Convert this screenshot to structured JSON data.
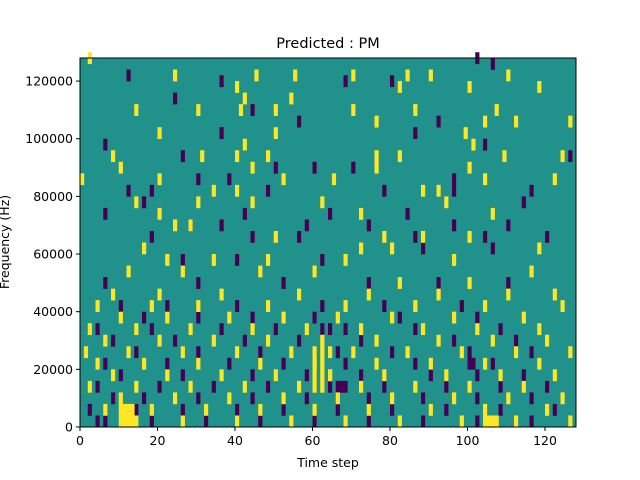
{
  "chart_data": {
    "type": "heatmap",
    "title": "Predicted : PM",
    "xlabel": "Time step",
    "ylabel": "Frequency (Hz)",
    "xlim": [
      0,
      128
    ],
    "ylim": [
      0,
      128000
    ],
    "x_ticks": [
      0,
      20,
      40,
      60,
      80,
      100,
      120
    ],
    "x_tick_labels": [
      "0",
      "20",
      "40",
      "60",
      "80",
      "100",
      "120"
    ],
    "y_ticks": [
      0,
      20000,
      40000,
      60000,
      80000,
      100000,
      120000
    ],
    "y_tick_labels": [
      "0",
      "20000",
      "40000",
      "60000",
      "80000",
      "100000",
      "120000"
    ],
    "grid": false,
    "colors": {
      "background": "#21918c",
      "low": "#440154",
      "high": "#fde725"
    },
    "cells_high": [
      [
        2,
        126000
      ],
      [
        24,
        120000
      ],
      [
        45,
        120000
      ],
      [
        55,
        120000
      ],
      [
        70,
        120000
      ],
      [
        84,
        120000
      ],
      [
        90,
        120000
      ],
      [
        110,
        120000
      ],
      [
        40,
        116000
      ],
      [
        42,
        112000
      ],
      [
        54,
        112000
      ],
      [
        82,
        116000
      ],
      [
        100,
        116000
      ],
      [
        118,
        116000
      ],
      [
        14,
        108000
      ],
      [
        30,
        108000
      ],
      [
        41,
        108000
      ],
      [
        50,
        108000
      ],
      [
        70,
        108000
      ],
      [
        86,
        108000
      ],
      [
        107,
        108000
      ],
      [
        76,
        104000
      ],
      [
        104,
        104000
      ],
      [
        112,
        104000
      ],
      [
        126,
        104000
      ],
      [
        20,
        100000
      ],
      [
        42,
        96000
      ],
      [
        50,
        100000
      ],
      [
        99,
        100000
      ],
      [
        101,
        96000
      ],
      [
        8,
        92000
      ],
      [
        31,
        92000
      ],
      [
        40,
        92000
      ],
      [
        48,
        92000
      ],
      [
        76,
        92000
      ],
      [
        82,
        92000
      ],
      [
        109,
        92000
      ],
      [
        124,
        92000
      ],
      [
        10,
        88000
      ],
      [
        44,
        88000
      ],
      [
        76,
        88000
      ],
      [
        100,
        88000
      ],
      [
        104,
        84000
      ],
      [
        122,
        84000
      ],
      [
        0,
        84000
      ],
      [
        20,
        84000
      ],
      [
        34,
        80000
      ],
      [
        40,
        80000
      ],
      [
        52,
        84000
      ],
      [
        65,
        84000
      ],
      [
        88,
        80000
      ],
      [
        92,
        80000
      ],
      [
        14,
        76000
      ],
      [
        20,
        72000
      ],
      [
        30,
        76000
      ],
      [
        44,
        76000
      ],
      [
        62,
        76000
      ],
      [
        72,
        72000
      ],
      [
        94,
        76000
      ],
      [
        106,
        72000
      ],
      [
        24,
        68000
      ],
      [
        28,
        68000
      ],
      [
        50,
        64000
      ],
      [
        78,
        64000
      ],
      [
        88,
        64000
      ],
      [
        100,
        64000
      ],
      [
        118,
        60000
      ],
      [
        16,
        60000
      ],
      [
        22,
        56000
      ],
      [
        34,
        56000
      ],
      [
        48,
        56000
      ],
      [
        68,
        56000
      ],
      [
        72,
        60000
      ],
      [
        80,
        60000
      ],
      [
        96,
        56000
      ],
      [
        12,
        52000
      ],
      [
        26,
        52000
      ],
      [
        46,
        52000
      ],
      [
        60,
        52000
      ],
      [
        82,
        48000
      ],
      [
        100,
        48000
      ],
      [
        116,
        52000
      ],
      [
        8,
        44000
      ],
      [
        20,
        44000
      ],
      [
        36,
        44000
      ],
      [
        56,
        44000
      ],
      [
        74,
        44000
      ],
      [
        92,
        44000
      ],
      [
        110,
        44000
      ],
      [
        122,
        44000
      ],
      [
        4,
        40000
      ],
      [
        18,
        40000
      ],
      [
        30,
        40000
      ],
      [
        48,
        40000
      ],
      [
        68,
        40000
      ],
      [
        86,
        40000
      ],
      [
        104,
        40000
      ],
      [
        124,
        40000
      ],
      [
        10,
        36000
      ],
      [
        22,
        36000
      ],
      [
        38,
        36000
      ],
      [
        52,
        36000
      ],
      [
        66,
        36000
      ],
      [
        80,
        36000
      ],
      [
        96,
        36000
      ],
      [
        114,
        36000
      ],
      [
        2,
        32000
      ],
      [
        14,
        32000
      ],
      [
        28,
        32000
      ],
      [
        44,
        32000
      ],
      [
        58,
        32000
      ],
      [
        72,
        32000
      ],
      [
        88,
        32000
      ],
      [
        102,
        32000
      ],
      [
        118,
        32000
      ],
      [
        6,
        28000
      ],
      [
        20,
        28000
      ],
      [
        34,
        28000
      ],
      [
        48,
        28000
      ],
      [
        62,
        28000
      ],
      [
        76,
        28000
      ],
      [
        92,
        28000
      ],
      [
        106,
        28000
      ],
      [
        120,
        28000
      ],
      [
        1,
        24000
      ],
      [
        12,
        24000
      ],
      [
        26,
        24000
      ],
      [
        40,
        24000
      ],
      [
        54,
        24000
      ],
      [
        70,
        24000
      ],
      [
        84,
        24000
      ],
      [
        98,
        24000
      ],
      [
        112,
        24000
      ],
      [
        126,
        24000
      ],
      [
        4,
        20000
      ],
      [
        16,
        20000
      ],
      [
        30,
        20000
      ],
      [
        46,
        20000
      ],
      [
        60,
        20000
      ],
      [
        76,
        20000
      ],
      [
        90,
        20000
      ],
      [
        104,
        20000
      ],
      [
        118,
        20000
      ],
      [
        8,
        16000
      ],
      [
        22,
        16000
      ],
      [
        36,
        16000
      ],
      [
        50,
        16000
      ],
      [
        64,
        16000
      ],
      [
        78,
        16000
      ],
      [
        94,
        16000
      ],
      [
        108,
        16000
      ],
      [
        122,
        16000
      ],
      [
        2,
        12000
      ],
      [
        14,
        12000
      ],
      [
        28,
        12000
      ],
      [
        42,
        12000
      ],
      [
        56,
        12000
      ],
      [
        72,
        12000
      ],
      [
        86,
        12000
      ],
      [
        100,
        12000
      ],
      [
        114,
        12000
      ],
      [
        10,
        8000
      ],
      [
        24,
        8000
      ],
      [
        38,
        8000
      ],
      [
        52,
        8000
      ],
      [
        66,
        8000
      ],
      [
        80,
        8000
      ],
      [
        96,
        8000
      ],
      [
        110,
        8000
      ],
      [
        124,
        8000
      ],
      [
        6,
        4000
      ],
      [
        18,
        4000
      ],
      [
        32,
        4000
      ],
      [
        46,
        4000
      ],
      [
        60,
        4000
      ],
      [
        74,
        4000
      ],
      [
        90,
        4000
      ],
      [
        104,
        4000
      ],
      [
        120,
        4000
      ],
      [
        12,
        0
      ],
      [
        26,
        0
      ],
      [
        40,
        0
      ],
      [
        54,
        0
      ],
      [
        68,
        0
      ],
      [
        82,
        0
      ],
      [
        98,
        0
      ],
      [
        112,
        0
      ],
      [
        126,
        0
      ],
      [
        60,
        24000
      ],
      [
        62,
        24000
      ],
      [
        64,
        24000
      ],
      [
        60,
        20000
      ],
      [
        62,
        20000
      ],
      [
        60,
        16000
      ],
      [
        62,
        16000
      ],
      [
        64,
        16000
      ],
      [
        60,
        12000
      ],
      [
        62,
        12000
      ],
      [
        10,
        0
      ],
      [
        11,
        0
      ],
      [
        12,
        0
      ],
      [
        13,
        0
      ],
      [
        14,
        0
      ],
      [
        10,
        4000
      ],
      [
        11,
        4000
      ],
      [
        12,
        4000
      ],
      [
        13,
        4000
      ],
      [
        104,
        0
      ],
      [
        105,
        0
      ],
      [
        106,
        0
      ],
      [
        107,
        0
      ]
    ],
    "cells_low": [
      [
        102,
        126000
      ],
      [
        12,
        120000
      ],
      [
        36,
        118000
      ],
      [
        68,
        118000
      ],
      [
        80,
        118000
      ],
      [
        106,
        124000
      ],
      [
        24,
        112000
      ],
      [
        44,
        108000
      ],
      [
        92,
        104000
      ],
      [
        56,
        104000
      ],
      [
        6,
        96000
      ],
      [
        36,
        100000
      ],
      [
        86,
        100000
      ],
      [
        104,
        96000
      ],
      [
        26,
        92000
      ],
      [
        50,
        88000
      ],
      [
        96,
        84000
      ],
      [
        126,
        92000
      ],
      [
        30,
        84000
      ],
      [
        38,
        84000
      ],
      [
        60,
        88000
      ],
      [
        70,
        88000
      ],
      [
        116,
        80000
      ],
      [
        12,
        80000
      ],
      [
        18,
        80000
      ],
      [
        48,
        80000
      ],
      [
        78,
        80000
      ],
      [
        96,
        80000
      ],
      [
        6,
        72000
      ],
      [
        16,
        76000
      ],
      [
        42,
        72000
      ],
      [
        64,
        72000
      ],
      [
        84,
        72000
      ],
      [
        114,
        76000
      ],
      [
        28,
        68000
      ],
      [
        36,
        68000
      ],
      [
        58,
        68000
      ],
      [
        74,
        68000
      ],
      [
        96,
        68000
      ],
      [
        110,
        68000
      ],
      [
        18,
        64000
      ],
      [
        44,
        64000
      ],
      [
        56,
        64000
      ],
      [
        86,
        64000
      ],
      [
        104,
        64000
      ],
      [
        120,
        64000
      ],
      [
        26,
        56000
      ],
      [
        40,
        56000
      ],
      [
        62,
        56000
      ],
      [
        88,
        60000
      ],
      [
        106,
        60000
      ],
      [
        6,
        48000
      ],
      [
        30,
        48000
      ],
      [
        52,
        48000
      ],
      [
        74,
        48000
      ],
      [
        92,
        48000
      ],
      [
        110,
        48000
      ],
      [
        10,
        40000
      ],
      [
        22,
        40000
      ],
      [
        40,
        40000
      ],
      [
        62,
        40000
      ],
      [
        78,
        40000
      ],
      [
        98,
        40000
      ],
      [
        16,
        36000
      ],
      [
        30,
        36000
      ],
      [
        44,
        36000
      ],
      [
        60,
        36000
      ],
      [
        82,
        36000
      ],
      [
        102,
        36000
      ],
      [
        4,
        32000
      ],
      [
        18,
        32000
      ],
      [
        36,
        32000
      ],
      [
        50,
        32000
      ],
      [
        68,
        32000
      ],
      [
        86,
        32000
      ],
      [
        108,
        32000
      ],
      [
        8,
        28000
      ],
      [
        24,
        28000
      ],
      [
        42,
        28000
      ],
      [
        56,
        28000
      ],
      [
        72,
        28000
      ],
      [
        96,
        28000
      ],
      [
        112,
        28000
      ],
      [
        14,
        24000
      ],
      [
        30,
        24000
      ],
      [
        46,
        24000
      ],
      [
        66,
        24000
      ],
      [
        80,
        24000
      ],
      [
        100,
        24000
      ],
      [
        116,
        24000
      ],
      [
        6,
        20000
      ],
      [
        22,
        20000
      ],
      [
        38,
        20000
      ],
      [
        52,
        20000
      ],
      [
        68,
        20000
      ],
      [
        86,
        20000
      ],
      [
        106,
        20000
      ],
      [
        10,
        16000
      ],
      [
        26,
        16000
      ],
      [
        44,
        16000
      ],
      [
        58,
        16000
      ],
      [
        72,
        16000
      ],
      [
        90,
        16000
      ],
      [
        102,
        16000
      ],
      [
        114,
        16000
      ],
      [
        4,
        12000
      ],
      [
        20,
        12000
      ],
      [
        34,
        12000
      ],
      [
        48,
        12000
      ],
      [
        64,
        12000
      ],
      [
        78,
        12000
      ],
      [
        94,
        12000
      ],
      [
        108,
        12000
      ],
      [
        120,
        12000
      ],
      [
        8,
        8000
      ],
      [
        16,
        8000
      ],
      [
        30,
        8000
      ],
      [
        44,
        8000
      ],
      [
        58,
        8000
      ],
      [
        74,
        8000
      ],
      [
        88,
        8000
      ],
      [
        102,
        8000
      ],
      [
        116,
        8000
      ],
      [
        2,
        4000
      ],
      [
        14,
        4000
      ],
      [
        26,
        4000
      ],
      [
        40,
        4000
      ],
      [
        52,
        4000
      ],
      [
        66,
        4000
      ],
      [
        80,
        4000
      ],
      [
        94,
        4000
      ],
      [
        108,
        4000
      ],
      [
        122,
        4000
      ],
      [
        4,
        0
      ],
      [
        6,
        0
      ],
      [
        18,
        0
      ],
      [
        32,
        0
      ],
      [
        46,
        0
      ],
      [
        60,
        0
      ],
      [
        74,
        0
      ],
      [
        88,
        0
      ],
      [
        102,
        0
      ],
      [
        116,
        0
      ],
      [
        66,
        12000
      ],
      [
        67,
        12000
      ],
      [
        68,
        12000
      ],
      [
        62,
        32000
      ],
      [
        64,
        32000
      ],
      [
        100,
        20000
      ],
      [
        101,
        20000
      ]
    ]
  }
}
